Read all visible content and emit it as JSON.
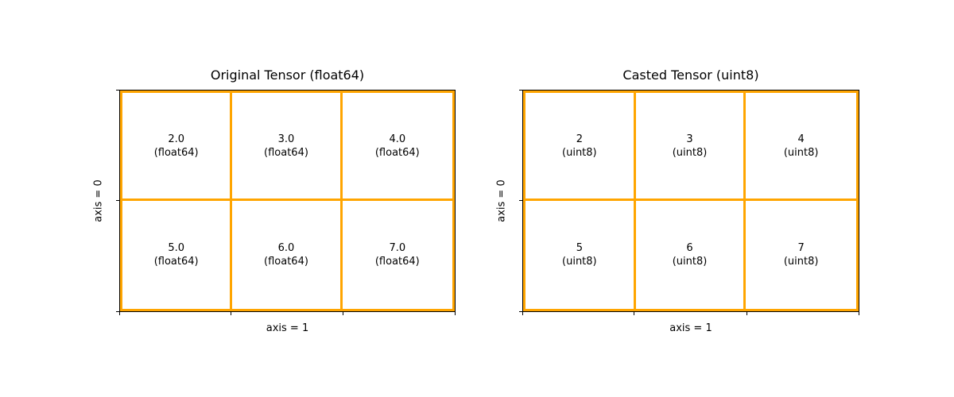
{
  "figure": {
    "background": "#ffffff",
    "grid_color": "#FFA500",
    "spine_color": "#000000",
    "text_color": "#000000"
  },
  "panels": [
    {
      "title": "Original Tensor (float64)",
      "xlabel": "axis = 1",
      "ylabel": "axis = 0",
      "cells": [
        {
          "value": "2.0",
          "dtype": "(float64)"
        },
        {
          "value": "3.0",
          "dtype": "(float64)"
        },
        {
          "value": "4.0",
          "dtype": "(float64)"
        },
        {
          "value": "5.0",
          "dtype": "(float64)"
        },
        {
          "value": "6.0",
          "dtype": "(float64)"
        },
        {
          "value": "7.0",
          "dtype": "(float64)"
        }
      ]
    },
    {
      "title": "Casted Tensor (uint8)",
      "xlabel": "axis = 1",
      "ylabel": "axis = 0",
      "cells": [
        {
          "value": "2",
          "dtype": "(uint8)"
        },
        {
          "value": "3",
          "dtype": "(uint8)"
        },
        {
          "value": "4",
          "dtype": "(uint8)"
        },
        {
          "value": "5",
          "dtype": "(uint8)"
        },
        {
          "value": "6",
          "dtype": "(uint8)"
        },
        {
          "value": "7",
          "dtype": "(uint8)"
        }
      ]
    }
  ],
  "chart_data": [
    {
      "type": "table",
      "title": "Original Tensor (float64)",
      "xlabel": "axis = 1",
      "ylabel": "axis = 0",
      "dtype": "float64",
      "shape": [
        2,
        3
      ],
      "rows": [
        [
          2.0,
          3.0,
          4.0
        ],
        [
          5.0,
          6.0,
          7.0
        ]
      ],
      "grid": true,
      "grid_color": "#FFA500",
      "legend_position": "none"
    },
    {
      "type": "table",
      "title": "Casted Tensor (uint8)",
      "xlabel": "axis = 1",
      "ylabel": "axis = 0",
      "dtype": "uint8",
      "shape": [
        2,
        3
      ],
      "rows": [
        [
          2,
          3,
          4
        ],
        [
          5,
          6,
          7
        ]
      ],
      "grid": true,
      "grid_color": "#FFA500",
      "legend_position": "none"
    }
  ]
}
